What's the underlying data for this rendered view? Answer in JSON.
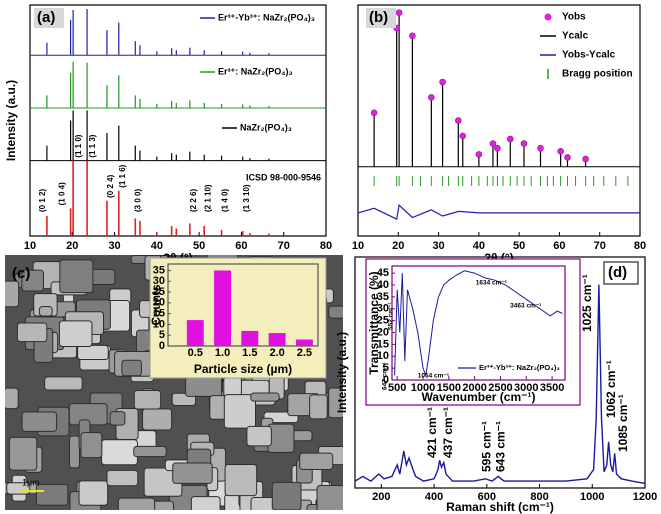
{
  "chart_data": [
    {
      "type": "stacked-sticks",
      "label": "(a)",
      "x_label": "2θ (°)",
      "y_label": "Intensity (a.u.)",
      "xlim": [
        10,
        80
      ],
      "xticks": [
        10,
        20,
        30,
        40,
        50,
        60,
        70,
        80
      ],
      "ylim": [
        0,
        460
      ],
      "x": [
        14.0,
        19.6,
        20.2,
        23.5,
        28.2,
        31.0,
        34.9,
        36.0,
        40.0,
        43.5,
        44.6,
        47.8,
        51.2,
        55.3,
        60.3,
        62.0,
        66.5
      ],
      "series": [
        {
          "name": "Er³⁺-Yb³⁺: NaZr₂(PO₄)₃",
          "color": "#1f1fb0",
          "values": [
            25,
            70,
            90,
            92,
            50,
            65,
            28,
            20,
            8,
            14,
            10,
            15,
            10,
            8,
            7,
            5,
            4
          ]
        },
        {
          "name": "Er³⁺: NaZr₂(PO₄)₃",
          "color": "#1f9a1f",
          "values": [
            25,
            70,
            92,
            90,
            45,
            65,
            25,
            18,
            8,
            14,
            10,
            15,
            10,
            8,
            7,
            5,
            4
          ]
        },
        {
          "name": "NaZr₂(PO₄)₃",
          "color": "#000000",
          "values": [
            30,
            80,
            100,
            100,
            55,
            70,
            30,
            20,
            8,
            15,
            12,
            18,
            12,
            10,
            8,
            5,
            4
          ]
        },
        {
          "name": "ICSD 98-000-9546",
          "color": "#e02020",
          "values": [
            40,
            55,
            150,
            150,
            70,
            90,
            35,
            30,
            8,
            20,
            15,
            25,
            20,
            12,
            10,
            6,
            5
          ]
        }
      ],
      "annotations": [
        {
          "text": "(0 1 2)",
          "x": 14.0
        },
        {
          "text": "(1 0 4)",
          "x": 19.6
        },
        {
          "text": "(1 1 0)",
          "x": 20.2
        },
        {
          "text": "(1 1 3)",
          "x": 23.5
        },
        {
          "text": "(0 2 4)",
          "x": 28.2
        },
        {
          "text": "(1 1 6)",
          "x": 31.0
        },
        {
          "text": "(3 0 0)",
          "x": 34.9
        },
        {
          "text": "(2 2 6)",
          "x": 47.8
        },
        {
          "text": "(2 1 10)",
          "x": 51.2
        },
        {
          "text": "(1 4 0)",
          "x": 55.3
        },
        {
          "text": "(1 3 10)",
          "x": 60.3
        }
      ]
    },
    {
      "type": "rietveld",
      "label": "(b)",
      "x_label": "2θ (°)",
      "xlim": [
        10,
        80
      ],
      "xticks": [
        10,
        20,
        30,
        40,
        50,
        60,
        70,
        80
      ],
      "ylim": [
        -0.45,
        1.05
      ],
      "x": [
        14.0,
        19.6,
        20.2,
        23.5,
        28.2,
        31.0,
        34.9,
        36.0,
        40.0,
        43.5,
        44.6,
        47.8,
        51.2,
        55.3,
        60.3,
        62.0,
        66.5
      ],
      "series": [
        {
          "name": "Yobs",
          "color": "#e020e0",
          "values": [
            0.35,
            0.9,
            1.0,
            0.85,
            0.45,
            0.55,
            0.3,
            0.2,
            0.08,
            0.15,
            0.12,
            0.18,
            0.15,
            0.12,
            0.1,
            0.06,
            0.05
          ]
        },
        {
          "name": "Ycalc",
          "color": "#000000",
          "values": [
            0.34,
            0.88,
            0.98,
            0.84,
            0.44,
            0.54,
            0.29,
            0.2,
            0.08,
            0.15,
            0.12,
            0.17,
            0.14,
            0.11,
            0.1,
            0.06,
            0.05
          ]
        },
        {
          "name": "Yobs-Ycalc",
          "color": "#1f1fb0",
          "x": [
            10,
            14,
            19.6,
            20.2,
            23.5,
            28.2,
            31,
            35,
            40,
            50,
            60,
            70,
            80
          ],
          "values": [
            -0.3,
            -0.27,
            -0.34,
            -0.25,
            -0.33,
            -0.28,
            -0.32,
            -0.29,
            -0.3,
            -0.3,
            -0.3,
            -0.3,
            -0.3
          ]
        },
        {
          "name": "Bragg position",
          "color": "#2a9a2a",
          "x": [
            14.0,
            19.6,
            20.2,
            23.5,
            25.5,
            28.2,
            31.0,
            32.5,
            34.9,
            36.0,
            38.2,
            40.0,
            42.1,
            43.5,
            44.6,
            46.0,
            47.8,
            49.5,
            51.2,
            53.0,
            55.3,
            57.0,
            58.5,
            60.3,
            62.0,
            64.0,
            66.5,
            68.5,
            71.0,
            74.0,
            77.0
          ]
        }
      ]
    },
    {
      "type": "bar",
      "label": "(c)",
      "scale_bar": "1µm",
      "x_label": "Particle size (µm)",
      "y_label": "Counts",
      "color": "#e010e0",
      "x": [
        0.5,
        1.0,
        1.5,
        2.0,
        2.5
      ],
      "values": [
        12,
        35,
        7,
        6,
        3
      ],
      "xlim": [
        0,
        2.75
      ],
      "xticks": [
        {
          "value": 0.5,
          "label": "0.5"
        },
        {
          "value": 1.0,
          "label": "1.0"
        },
        {
          "value": 1.5,
          "label": "1.5"
        },
        {
          "value": 2.0,
          "label": "2.0"
        },
        {
          "value": 2.5,
          "label": "2.5"
        }
      ],
      "ylim": [
        0,
        38
      ],
      "yticks": [
        0,
        5,
        10,
        15,
        20,
        25,
        30,
        35
      ]
    },
    {
      "type": "line",
      "label": "(d)",
      "x_label": "Raman shift (cm⁻¹)",
      "y_label": "Intensity (a.u.)",
      "color": "#1a1aa0",
      "xlim": [
        100,
        1200
      ],
      "xticks": [
        200,
        400,
        600,
        800,
        1000,
        1200
      ],
      "ylim": [
        0,
        1
      ],
      "x": [
        100,
        130,
        160,
        190,
        200,
        210,
        240,
        260,
        270,
        285,
        295,
        305,
        320,
        330,
        360,
        400,
        415,
        421,
        428,
        437,
        445,
        470,
        550,
        595,
        620,
        643,
        665,
        720,
        800,
        900,
        980,
        1005,
        1015,
        1025,
        1035,
        1045,
        1055,
        1062,
        1070,
        1078,
        1085,
        1092,
        1110,
        1150,
        1200
      ],
      "values": [
        0.03,
        0.05,
        0.03,
        0.06,
        0.05,
        0.04,
        0.05,
        0.1,
        0.06,
        0.16,
        0.1,
        0.13,
        0.08,
        0.05,
        0.03,
        0.04,
        0.08,
        0.12,
        0.09,
        0.11,
        0.06,
        0.03,
        0.03,
        0.04,
        0.03,
        0.05,
        0.03,
        0.03,
        0.03,
        0.03,
        0.04,
        0.08,
        0.3,
        0.88,
        0.3,
        0.07,
        0.1,
        0.2,
        0.1,
        0.07,
        0.15,
        0.06,
        0.04,
        0.03,
        0.02
      ],
      "annotations": [
        {
          "text": "421 cm⁻¹",
          "x": 421
        },
        {
          "text": "437 cm⁻¹",
          "x": 437
        },
        {
          "text": "595 cm⁻¹",
          "x": 595
        },
        {
          "text": "643 cm⁻¹",
          "x": 643
        },
        {
          "text": "1025 cm⁻¹",
          "x": 1025
        },
        {
          "text": "1062 cm⁻¹",
          "x": 1062
        },
        {
          "text": "1085 cm⁻¹",
          "x": 1085
        }
      ]
    },
    {
      "type": "line",
      "x_label": "Wavenumber (cm⁻¹)",
      "y_label": "Transmittance (%)",
      "xlim": [
        400,
        3750
      ],
      "xticks": [
        500,
        1000,
        1500,
        2000,
        2500,
        3000,
        3500
      ],
      "ylim": [
        0,
        48
      ],
      "yticks": [
        0,
        5,
        10,
        15,
        20,
        25,
        30,
        35,
        40,
        45
      ],
      "x": [
        450,
        500,
        552,
        600,
        647,
        700,
        800,
        900,
        1000,
        1054,
        1100,
        1200,
        1300,
        1400,
        1500,
        1634,
        1800,
        2000,
        2200,
        2400,
        2600,
        2800,
        3000,
        3200,
        3463,
        3600,
        3700
      ],
      "series": [
        {
          "name": "Er³⁺-Yb³⁺: NaZr₂(PO₄)₃",
          "color": "#1a1aa0",
          "values": [
            2,
            38,
            20,
            45,
            8,
            38,
            30,
            20,
            5,
            2,
            8,
            25,
            35,
            40,
            42,
            44,
            46,
            45,
            43,
            42,
            40,
            37,
            34,
            31,
            27,
            29,
            28
          ]
        }
      ],
      "annotations": [
        {
          "text": "552 cm⁻¹",
          "x": 552
        },
        {
          "text": "647 cm⁻¹",
          "x": 647
        },
        {
          "text": "1054 cm⁻¹",
          "x": 1054
        },
        {
          "text": "1634 cm⁻¹",
          "x": 1634
        },
        {
          "text": "3463 cm⁻¹",
          "x": 3463
        }
      ]
    }
  ]
}
